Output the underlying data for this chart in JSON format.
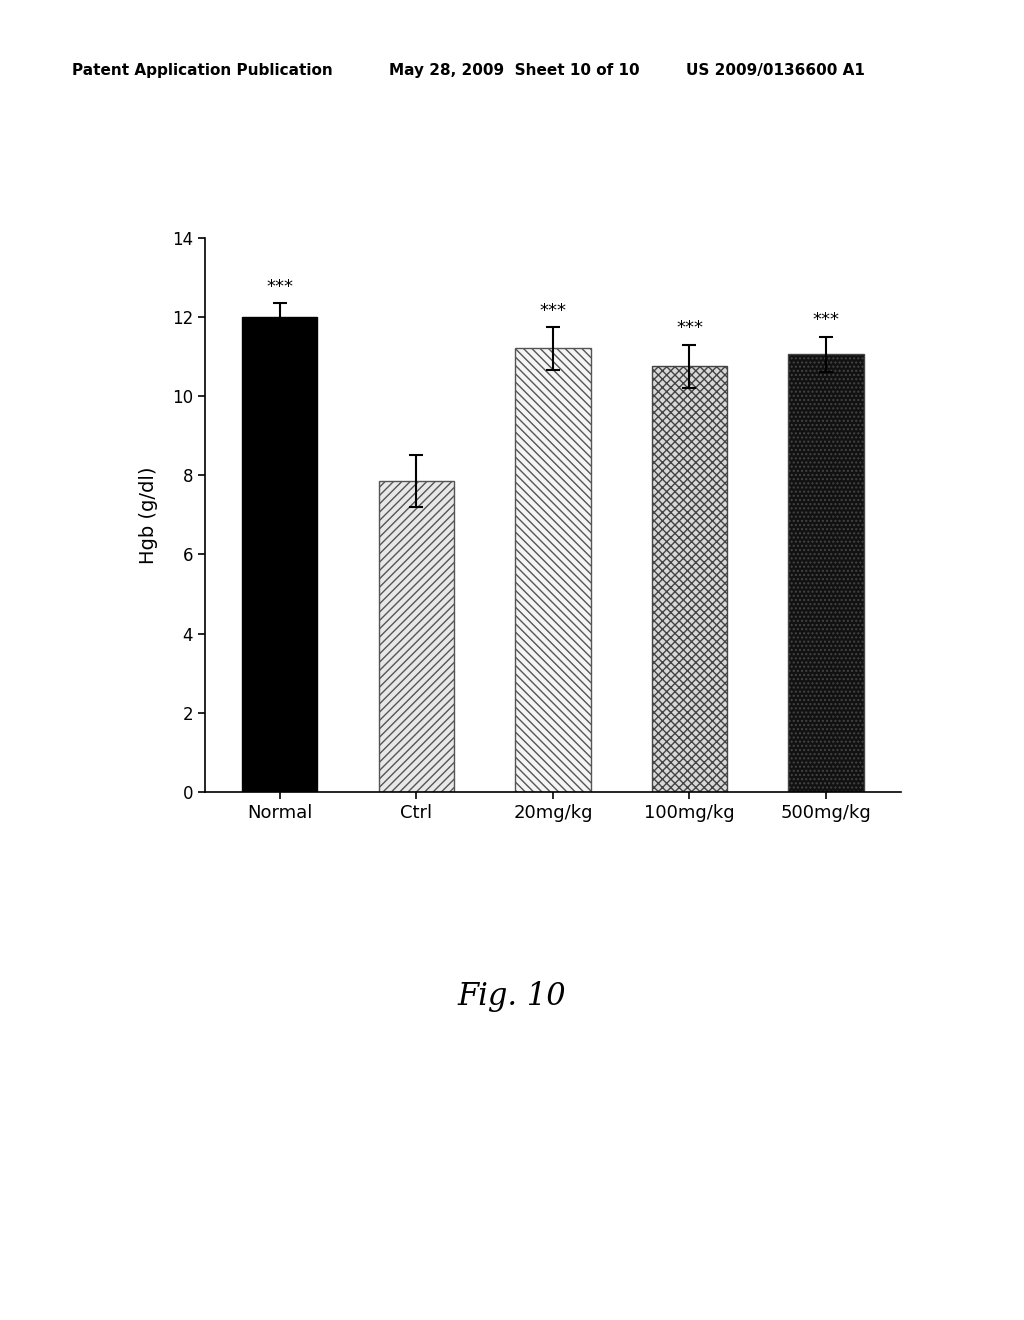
{
  "categories": [
    "Normal",
    "Ctrl",
    "20mg/kg",
    "100mg/kg",
    "500mg/kg"
  ],
  "values": [
    12.0,
    7.85,
    11.2,
    10.75,
    11.05
  ],
  "errors": [
    0.35,
    0.65,
    0.55,
    0.55,
    0.45
  ],
  "significance": [
    "***",
    "",
    "***",
    "***",
    "***"
  ],
  "ylim": [
    0,
    14
  ],
  "yticks": [
    0,
    2,
    4,
    6,
    8,
    10,
    12,
    14
  ],
  "ylabel": "Hgb (g/dl)",
  "fig_caption": "Fig. 10",
  "header_left": "Patent Application Publication",
  "header_mid": "May 28, 2009  Sheet 10 of 10",
  "header_right": "US 2009/0136600 A1",
  "background_color": "#ffffff",
  "bar_width": 0.55,
  "errorbar_color": "#000000",
  "sig_fontsize": 13,
  "ylabel_fontsize": 14,
  "xtick_fontsize": 13,
  "ytick_fontsize": 12,
  "caption_fontsize": 22,
  "header_fontsize": 11
}
